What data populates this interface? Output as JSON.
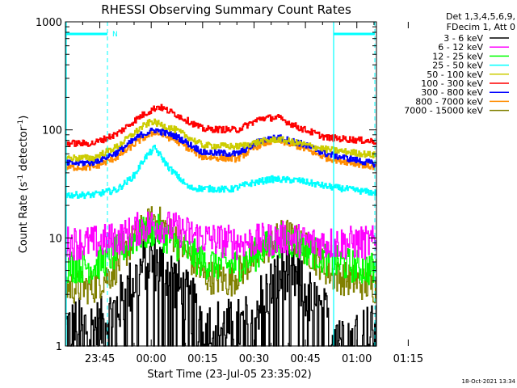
{
  "chart_data": {
    "type": "line",
    "title": "RHESSI Observing Summary Count Rates",
    "xlabel": "Start Time (23-Jul-05 23:35:02)",
    "ylabel_main": "Count Rate (s",
    "ylabel_sup1": "-1",
    "ylabel_mid": " detector",
    "ylabel_sup2": "-1",
    "ylabel_end": ")",
    "y_scale": "log",
    "ylim": [
      1,
      1000
    ],
    "xlim_minutes": [
      -10.03,
      80.72
    ],
    "x_ticks": [
      {
        "label": "23:45",
        "minutes": 0
      },
      {
        "label": "00:00",
        "minutes": 15
      },
      {
        "label": "00:15",
        "minutes": 30
      },
      {
        "label": "00:30",
        "minutes": 45
      },
      {
        "label": "00:45",
        "minutes": 60
      },
      {
        "label": "01:00",
        "minutes": 75
      },
      {
        "label": "01:15",
        "minutes": 90
      }
    ],
    "y_ticks": [
      {
        "label": "1",
        "value": 1
      },
      {
        "label": "10",
        "value": 10
      },
      {
        "label": "100",
        "value": 100
      },
      {
        "label": "1000",
        "value": 1000
      }
    ],
    "legend_header": [
      "Det 1,3,4,5,6,9,",
      "FDecim 1, Att 0"
    ],
    "legend_placement": "top-right, outside plot",
    "flag_label": "N",
    "timestamp": "18-Oct-2021 13:34",
    "series": [
      {
        "name": "3 - 6 keV",
        "color": "#000000"
      },
      {
        "name": "6 - 12 keV",
        "color": "#ff00ff"
      },
      {
        "name": "12 - 25 keV",
        "color": "#00ff00"
      },
      {
        "name": "25 - 50 keV",
        "color": "#00ffff"
      },
      {
        "name": "50 - 100 keV",
        "color": "#cccc00"
      },
      {
        "name": "100 - 300 keV",
        "color": "#ff0000"
      },
      {
        "name": "300 - 800 keV",
        "color": "#0000ff"
      },
      {
        "name": "800 - 7000 keV",
        "color": "#ff8c00"
      },
      {
        "name": "7000 - 15000 keV",
        "color": "#808000"
      }
    ],
    "series_curves": [
      {
        "series": "100 - 300 keV",
        "points": [
          [
            -10,
            75
          ],
          [
            -2,
            75
          ],
          [
            5,
            92
          ],
          [
            12,
            135
          ],
          [
            17,
            165
          ],
          [
            22,
            140
          ],
          [
            30,
            102
          ],
          [
            40,
            100
          ],
          [
            47,
            128
          ],
          [
            52,
            130
          ],
          [
            58,
            105
          ],
          [
            66,
            85
          ],
          [
            80.7,
            78
          ]
        ]
      },
      {
        "series": "50 - 100 keV",
        "points": [
          [
            -10,
            55
          ],
          [
            -2,
            55
          ],
          [
            5,
            70
          ],
          [
            12,
            105
          ],
          [
            15,
            120
          ],
          [
            22,
            100
          ],
          [
            30,
            72
          ],
          [
            40,
            70
          ],
          [
            47,
            78
          ],
          [
            52,
            82
          ],
          [
            58,
            75
          ],
          [
            66,
            66
          ],
          [
            80.7,
            58
          ]
        ]
      },
      {
        "series": "300 - 800 keV",
        "points": [
          [
            -10,
            49
          ],
          [
            -2,
            50
          ],
          [
            5,
            62
          ],
          [
            12,
            90
          ],
          [
            16,
            100
          ],
          [
            22,
            88
          ],
          [
            30,
            62
          ],
          [
            40,
            60
          ],
          [
            47,
            80
          ],
          [
            52,
            85
          ],
          [
            58,
            76
          ],
          [
            66,
            60
          ],
          [
            80.7,
            48
          ]
        ]
      },
      {
        "series": "800 - 7000 keV",
        "points": [
          [
            -10,
            45
          ],
          [
            -2,
            45
          ],
          [
            5,
            56
          ],
          [
            12,
            82
          ],
          [
            16,
            96
          ],
          [
            22,
            80
          ],
          [
            30,
            56
          ],
          [
            40,
            54
          ],
          [
            47,
            74
          ],
          [
            52,
            80
          ],
          [
            58,
            70
          ],
          [
            66,
            55
          ],
          [
            80.7,
            45
          ]
        ]
      },
      {
        "series": "25 - 50 keV",
        "points": [
          [
            -10,
            25
          ],
          [
            -2,
            25
          ],
          [
            5,
            28
          ],
          [
            10,
            38
          ],
          [
            13,
            55
          ],
          [
            16,
            68
          ],
          [
            20,
            45
          ],
          [
            26,
            29
          ],
          [
            38,
            28
          ],
          [
            44,
            32
          ],
          [
            50,
            35
          ],
          [
            58,
            34
          ],
          [
            66,
            30
          ],
          [
            80.7,
            26
          ]
        ]
      },
      {
        "series": "6 - 12 keV",
        "points": [
          [
            -10,
            9
          ],
          [
            -2,
            9
          ],
          [
            6,
            10
          ],
          [
            12,
            12.5
          ],
          [
            16,
            13.5
          ],
          [
            22,
            12
          ],
          [
            30,
            10
          ],
          [
            40,
            9
          ],
          [
            48,
            9.5
          ],
          [
            54,
            10
          ],
          [
            62,
            9
          ],
          [
            80.7,
            9
          ]
        ]
      },
      {
        "series": "12 - 25 keV",
        "points": [
          [
            -10,
            5.5
          ],
          [
            -2,
            5.5
          ],
          [
            4,
            7
          ],
          [
            10,
            10
          ],
          [
            16,
            12
          ],
          [
            22,
            9
          ],
          [
            30,
            6
          ],
          [
            40,
            5.5
          ],
          [
            48,
            8
          ],
          [
            54,
            10
          ],
          [
            60,
            8
          ],
          [
            68,
            6
          ],
          [
            80.7,
            5
          ]
        ]
      },
      {
        "series": "7000 - 15000 keV",
        "points": [
          [
            -10,
            3.5
          ],
          [
            -2,
            3.5
          ],
          [
            4,
            5
          ],
          [
            10,
            10
          ],
          [
            16,
            15
          ],
          [
            22,
            10
          ],
          [
            30,
            4.5
          ],
          [
            38,
            4
          ],
          [
            46,
            7
          ],
          [
            54,
            11
          ],
          [
            60,
            8
          ],
          [
            68,
            4.5
          ],
          [
            80.7,
            3.5
          ]
        ]
      },
      {
        "series": "3 - 6 keV",
        "points": [
          [
            -10,
            1.5
          ],
          [
            0,
            1.5
          ],
          [
            6,
            2.5
          ],
          [
            10,
            4
          ],
          [
            14,
            6.5
          ],
          [
            20,
            5
          ],
          [
            26,
            2.5
          ],
          [
            32,
            1.5
          ],
          [
            42,
            1.5
          ],
          [
            48,
            3
          ],
          [
            54,
            5
          ],
          [
            58,
            4
          ],
          [
            64,
            2
          ],
          [
            70,
            1.5
          ],
          [
            80.7,
            1.3
          ]
        ]
      }
    ]
  }
}
